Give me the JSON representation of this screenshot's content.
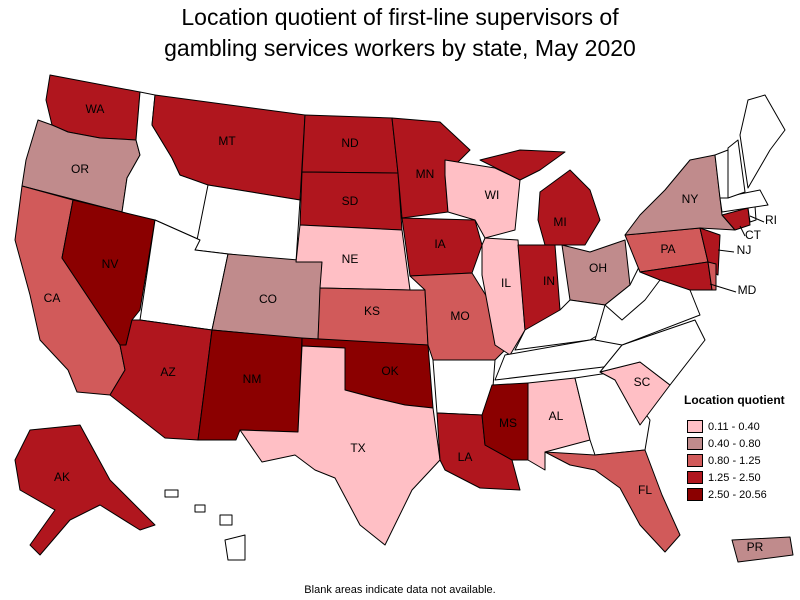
{
  "title_line1": "Location quotient of first-line supervisors of",
  "title_line2": "gambling services workers by state, May 2020",
  "legend": {
    "title": "Location quotient",
    "ranges": [
      {
        "label": "0.11 - 0.40",
        "color": "#ffbfc5"
      },
      {
        "label": "0.40 - 0.80",
        "color": "#c08b8c"
      },
      {
        "label": "0.80 - 1.25",
        "color": "#d15a5a"
      },
      {
        "label": "1.25 - 2.50",
        "color": "#b0161e"
      },
      {
        "label": "2.50 - 20.56",
        "color": "#8b0000"
      }
    ]
  },
  "footnote": "Blank areas indicate data not available.",
  "states": {
    "WA": {
      "label": "WA",
      "level": 3
    },
    "OR": {
      "label": "OR",
      "level": 1
    },
    "CA": {
      "label": "CA",
      "level": 2
    },
    "NV": {
      "label": "NV",
      "level": 4
    },
    "ID": {
      "label": "",
      "level": -1
    },
    "MT": {
      "label": "MT",
      "level": 3
    },
    "WY": {
      "label": "",
      "level": -1
    },
    "UT": {
      "label": "",
      "level": -1
    },
    "AZ": {
      "label": "AZ",
      "level": 3
    },
    "CO": {
      "label": "CO",
      "level": 1
    },
    "NM": {
      "label": "NM",
      "level": 4
    },
    "ND": {
      "label": "ND",
      "level": 3
    },
    "SD": {
      "label": "SD",
      "level": 3
    },
    "NE": {
      "label": "NE",
      "level": 0
    },
    "KS": {
      "label": "KS",
      "level": 2
    },
    "OK": {
      "label": "OK",
      "level": 4
    },
    "TX": {
      "label": "TX",
      "level": 0
    },
    "MN": {
      "label": "MN",
      "level": 3
    },
    "IA": {
      "label": "IA",
      "level": 3
    },
    "MO": {
      "label": "MO",
      "level": 2
    },
    "AR": {
      "label": "",
      "level": -1
    },
    "LA": {
      "label": "LA",
      "level": 3
    },
    "WI": {
      "label": "WI",
      "level": 0
    },
    "IL": {
      "label": "IL",
      "level": 0
    },
    "MS": {
      "label": "MS",
      "level": 4
    },
    "MI": {
      "label": "MI",
      "level": 3
    },
    "IN": {
      "label": "IN",
      "level": 3
    },
    "OH": {
      "label": "OH",
      "level": 1
    },
    "KY": {
      "label": "",
      "level": -1
    },
    "TN": {
      "label": "",
      "level": -1
    },
    "AL": {
      "label": "AL",
      "level": 0
    },
    "GA": {
      "label": "",
      "level": -1
    },
    "FL": {
      "label": "FL",
      "level": 2
    },
    "SC": {
      "label": "SC",
      "level": 0
    },
    "NC": {
      "label": "",
      "level": -1
    },
    "VA": {
      "label": "",
      "level": -1
    },
    "WV": {
      "label": "",
      "level": -1
    },
    "PA": {
      "label": "PA",
      "level": 2
    },
    "NY": {
      "label": "NY",
      "level": 1
    },
    "NJ": {
      "label": "NJ",
      "level": 3
    },
    "MD": {
      "label": "MD",
      "level": 3
    },
    "DE": {
      "label": "",
      "level": 2
    },
    "CT": {
      "label": "CT",
      "level": 3
    },
    "RI": {
      "label": "RI",
      "level": -1
    },
    "MA": {
      "label": "",
      "level": -1
    },
    "VT": {
      "label": "",
      "level": -1
    },
    "NH": {
      "label": "",
      "level": -1
    },
    "ME": {
      "label": "",
      "level": -1
    },
    "AK": {
      "label": "AK",
      "level": 3
    },
    "HI": {
      "label": "",
      "level": -1
    },
    "PR": {
      "label": "PR",
      "level": 1
    }
  }
}
